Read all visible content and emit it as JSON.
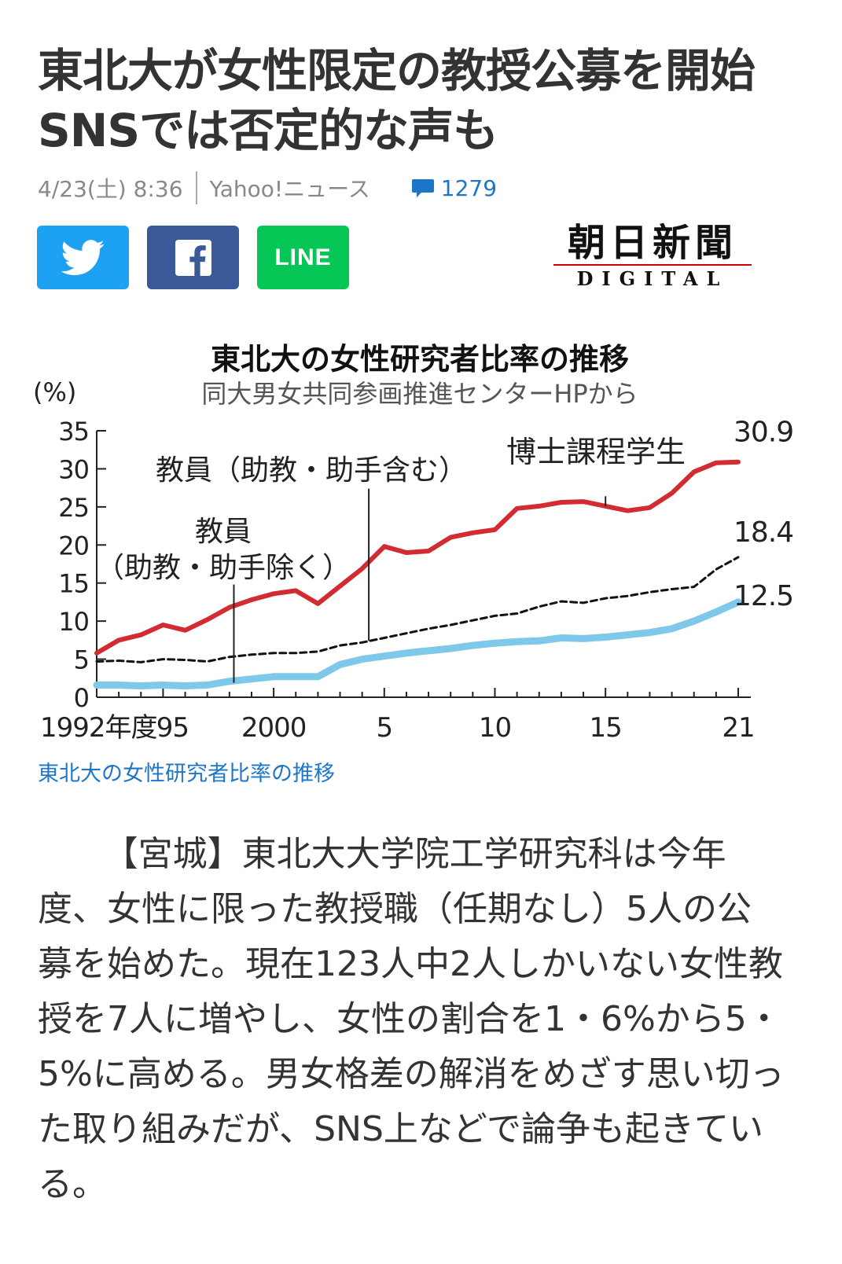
{
  "article": {
    "headline_line1": "東北大が女性限定の教授公募を開始",
    "headline_line2": "SNSでは否定的な声も",
    "date": "4/23(土) 8:36",
    "source": "Yahoo!ニュース",
    "comment_count": "1279"
  },
  "share": {
    "twitter_icon": "twitter-bird-icon",
    "facebook_icon": "facebook-f-icon",
    "line_label": "LINE"
  },
  "logo": {
    "name": "朝日新聞",
    "sub": "DIGITAL"
  },
  "chart_data": {
    "type": "line",
    "title": "東北大の女性研究者比率の推移",
    "subtitle": "同大男女共同参画推進センターHPから",
    "ylabel": "(%)",
    "ylim": [
      0,
      35
    ],
    "yticks": [
      "0",
      "5",
      "10",
      "15",
      "20",
      "25",
      "30",
      "35"
    ],
    "xlim": [
      1992,
      2021
    ],
    "xtick_labels": [
      {
        "x": 1992,
        "label": "1992年度"
      },
      {
        "x": 1995,
        "label": "95"
      },
      {
        "x": 2000,
        "label": "2000"
      },
      {
        "x": 2005,
        "label": "5"
      },
      {
        "x": 2010,
        "label": "10"
      },
      {
        "x": 2015,
        "label": "15"
      },
      {
        "x": 2021,
        "label": "21"
      }
    ],
    "x": [
      1992,
      1993,
      1994,
      1995,
      1996,
      1997,
      1998,
      1999,
      2000,
      2001,
      2002,
      2003,
      2004,
      2005,
      2006,
      2007,
      2008,
      2009,
      2010,
      2011,
      2012,
      2013,
      2014,
      2015,
      2016,
      2017,
      2018,
      2019,
      2020,
      2021
    ],
    "series": [
      {
        "name": "博士課程学生",
        "color": "#d22b32",
        "dash": false,
        "values": [
          5.8,
          7.5,
          8.2,
          9.5,
          8.8,
          10.2,
          11.8,
          12.8,
          13.6,
          14.0,
          12.3,
          14.6,
          16.9,
          19.8,
          19.0,
          19.2,
          21.0,
          21.6,
          22.0,
          24.8,
          25.1,
          25.6,
          25.7,
          25.1,
          24.5,
          24.9,
          26.8,
          29.6,
          30.8,
          30.9
        ]
      },
      {
        "name": "教員（助教・助手含む）",
        "color": "#111111",
        "dash": true,
        "values": [
          4.7,
          4.8,
          4.6,
          5.0,
          4.9,
          4.7,
          5.3,
          5.6,
          5.8,
          5.8,
          6.0,
          6.8,
          7.2,
          7.8,
          8.4,
          9.0,
          9.5,
          10.1,
          10.7,
          11.0,
          11.9,
          12.6,
          12.4,
          13.0,
          13.3,
          13.8,
          14.2,
          14.5,
          16.8,
          18.4
        ]
      },
      {
        "name": "教員（助教・助手除く）",
        "color": "#7ec8ea",
        "dash": false,
        "values": [
          1.6,
          1.6,
          1.5,
          1.6,
          1.5,
          1.6,
          2.1,
          2.4,
          2.7,
          2.7,
          2.7,
          4.3,
          5.0,
          5.4,
          5.8,
          6.1,
          6.4,
          6.8,
          7.1,
          7.3,
          7.4,
          7.8,
          7.7,
          7.9,
          8.2,
          8.5,
          9.0,
          10.0,
          11.2,
          12.5
        ]
      }
    ],
    "end_labels": [
      "30.9",
      "18.4",
      "12.5"
    ],
    "annotations": [
      {
        "lines": [
          "博士課程学生"
        ],
        "x": 2015,
        "y_from": 25.1,
        "y_to": 26.4
      },
      {
        "lines": [
          "教員（助教・助手含む）"
        ],
        "x": 2004.3,
        "y_from": 7.4,
        "y_to": 27.4
      },
      {
        "lines": [
          "教員",
          "（助教・助手除く）"
        ],
        "x": 1998.2,
        "y_from": 1.9,
        "y_to": 14.8
      }
    ]
  },
  "caption": "東北大の女性研究者比率の推移",
  "body": "【宮城】東北大大学院工学研究科は今年度、女性に限った教授職（任期なし）5人の公募を始めた。現在123人中2人しかいない女性教授を7人に増やし、女性の割合を1・6%から5・5%に高める。男女格差の解消をめざす思い切った取り組みだが、SNS上などで論争も起きている。"
}
